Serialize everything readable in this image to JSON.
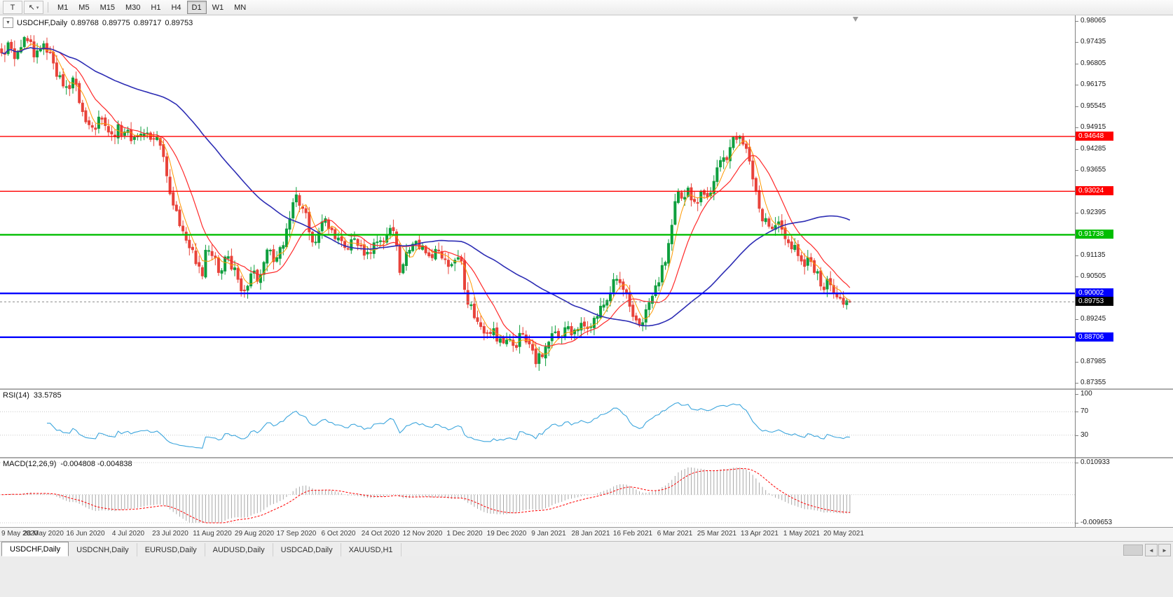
{
  "toolbar": {
    "tool_buttons": [
      {
        "id": "text-tool",
        "label": "T"
      },
      {
        "id": "cursor-tool",
        "label": "↖",
        "caret": "▾"
      }
    ],
    "timeframes": [
      "M1",
      "M5",
      "M15",
      "M30",
      "H1",
      "H4",
      "D1",
      "W1",
      "MN"
    ],
    "active_timeframe": "D1"
  },
  "chart": {
    "title": {
      "collapse_icon": "▼",
      "symbol": "USDCHF,Daily",
      "open": "0.89768",
      "high": "0.89775",
      "low": "0.89717",
      "close": "0.89753"
    },
    "price_axis": {
      "max": 0.98065,
      "min": 0.87355,
      "labels": [
        "0.98065",
        "0.97435",
        "0.96805",
        "0.96175",
        "0.95545",
        "0.94915",
        "0.94285",
        "0.93655",
        "0.93025",
        "0.92395",
        "0.91765",
        "0.91135",
        "0.90505",
        "0.89875",
        "0.89245",
        "0.88615",
        "0.87985",
        "0.87355"
      ]
    },
    "hlines": [
      {
        "price": 0.94648,
        "label": "0.94648",
        "color": "#FF0000",
        "width": 1.4
      },
      {
        "price": 0.93024,
        "label": "0.93024",
        "color": "#FF0000",
        "width": 1.4
      },
      {
        "price": 0.91738,
        "label": "0.91738",
        "color": "#00BE00",
        "width": 2.4
      },
      {
        "price": 0.90002,
        "label": "0.90002",
        "color": "#0000FF",
        "width": 2.4
      },
      {
        "price": 0.88706,
        "label": "0.88706",
        "color": "#0000FF",
        "width": 2.4
      }
    ],
    "current_price": {
      "value": 0.89753,
      "label": "0.89753",
      "color": "#000000"
    },
    "colors": {
      "up": "#0E9F3E",
      "down": "#E8433A",
      "ma_fast": "#FF9900",
      "ma_mid": "#FF2A2A",
      "ma_slow": "#2D2DB4",
      "rsi": "#3DA6DD",
      "macd_hist": "#A8A8A8",
      "macd_signal": "#FF0000",
      "current_line": "#888888"
    }
  },
  "chart_data": {
    "type": "candlestick",
    "symbol": "USDCHF",
    "timeframe": "Daily",
    "bar_count": 263,
    "total_slots": 332,
    "price_range": [
      0.87355,
      0.98065
    ],
    "last_ohlc": {
      "open": 0.89768,
      "high": 0.89775,
      "low": 0.89717,
      "close": 0.89753
    },
    "close_keyframes": [
      [
        0,
        0.9712
      ],
      [
        2,
        0.9742
      ],
      [
        4,
        0.9695
      ],
      [
        6,
        0.9728
      ],
      [
        8,
        0.9748
      ],
      [
        10,
        0.97
      ],
      [
        12,
        0.9722
      ],
      [
        14,
        0.9714
      ],
      [
        16,
        0.9682
      ],
      [
        18,
        0.9645
      ],
      [
        20,
        0.9612
      ],
      [
        22,
        0.9638
      ],
      [
        24,
        0.9565
      ],
      [
        26,
        0.9508
      ],
      [
        28,
        0.9492
      ],
      [
        30,
        0.9522
      ],
      [
        32,
        0.9497
      ],
      [
        34,
        0.9472
      ],
      [
        36,
        0.95
      ],
      [
        38,
        0.9478
      ],
      [
        40,
        0.9452
      ],
      [
        42,
        0.9466
      ],
      [
        44,
        0.9472
      ],
      [
        46,
        0.9456
      ],
      [
        48,
        0.9462
      ],
      [
        50,
        0.9405
      ],
      [
        52,
        0.9295
      ],
      [
        54,
        0.9245
      ],
      [
        56,
        0.9185
      ],
      [
        58,
        0.9135
      ],
      [
        60,
        0.9088
      ],
      [
        62,
        0.9052
      ],
      [
        63,
        0.9128
      ],
      [
        65,
        0.9112
      ],
      [
        67,
        0.9062
      ],
      [
        69,
        0.9108
      ],
      [
        71,
        0.9072
      ],
      [
        73,
        0.9042
      ],
      [
        75,
        0.9008
      ],
      [
        77,
        0.9058
      ],
      [
        79,
        0.9036
      ],
      [
        81,
        0.9092
      ],
      [
        83,
        0.9128
      ],
      [
        85,
        0.9106
      ],
      [
        87,
        0.9142
      ],
      [
        89,
        0.9222
      ],
      [
        91,
        0.9292
      ],
      [
        93,
        0.9252
      ],
      [
        95,
        0.9182
      ],
      [
        97,
        0.9152
      ],
      [
        99,
        0.9212
      ],
      [
        101,
        0.9192
      ],
      [
        103,
        0.9162
      ],
      [
        105,
        0.9156
      ],
      [
        107,
        0.9132
      ],
      [
        109,
        0.9162
      ],
      [
        111,
        0.9142
      ],
      [
        113,
        0.9122
      ],
      [
        115,
        0.915
      ],
      [
        117,
        0.9156
      ],
      [
        119,
        0.9172
      ],
      [
        121,
        0.9186
      ],
      [
        123,
        0.9062
      ],
      [
        125,
        0.9122
      ],
      [
        127,
        0.9146
      ],
      [
        129,
        0.9132
      ],
      [
        131,
        0.912
      ],
      [
        133,
        0.9106
      ],
      [
        135,
        0.9126
      ],
      [
        137,
        0.9102
      ],
      [
        139,
        0.9086
      ],
      [
        141,
        0.9106
      ],
      [
        142,
        0.9096
      ],
      [
        143,
        0.9012
      ],
      [
        144,
        0.8968
      ],
      [
        146,
        0.8928
      ],
      [
        148,
        0.8902
      ],
      [
        150,
        0.8882
      ],
      [
        152,
        0.8896
      ],
      [
        154,
        0.8866
      ],
      [
        156,
        0.8862
      ],
      [
        158,
        0.8846
      ],
      [
        160,
        0.8882
      ],
      [
        162,
        0.8856
      ],
      [
        164,
        0.8832
      ],
      [
        165,
        0.8792
      ],
      [
        166,
        0.8822
      ],
      [
        168,
        0.8842
      ],
      [
        169,
        0.8856
      ],
      [
        171,
        0.8886
      ],
      [
        173,
        0.8872
      ],
      [
        175,
        0.8902
      ],
      [
        177,
        0.8892
      ],
      [
        179,
        0.8912
      ],
      [
        181,
        0.8896
      ],
      [
        182,
        0.8902
      ],
      [
        184,
        0.8932
      ],
      [
        186,
        0.8966
      ],
      [
        188,
        0.9002
      ],
      [
        190,
        0.9042
      ],
      [
        192,
        0.9012
      ],
      [
        194,
        0.8962
      ],
      [
        195,
        0.8932
      ],
      [
        197,
        0.8906
      ],
      [
        199,
        0.8952
      ],
      [
        201,
        0.8992
      ],
      [
        203,
        0.9032
      ],
      [
        205,
        0.9092
      ],
      [
        207,
        0.9202
      ],
      [
        208,
        0.9272
      ],
      [
        209,
        0.9302
      ],
      [
        210,
        0.9282
      ],
      [
        212,
        0.9312
      ],
      [
        214,
        0.9272
      ],
      [
        216,
        0.9302
      ],
      [
        218,
        0.9286
      ],
      [
        220,
        0.9332
      ],
      [
        221,
        0.9372
      ],
      [
        223,
        0.9402
      ],
      [
        225,
        0.9432
      ],
      [
        227,
        0.9456
      ],
      [
        228,
        0.9465
      ],
      [
        229,
        0.9442
      ],
      [
        231,
        0.9392
      ],
      [
        233,
        0.9302
      ],
      [
        234,
        0.9252
      ],
      [
        236,
        0.9222
      ],
      [
        238,
        0.9192
      ],
      [
        240,
        0.9212
      ],
      [
        242,
        0.9162
      ],
      [
        244,
        0.9132
      ],
      [
        246,
        0.9112
      ],
      [
        247,
        0.9096
      ],
      [
        249,
        0.9106
      ],
      [
        251,
        0.9062
      ],
      [
        253,
        0.9022
      ],
      [
        255,
        0.9042
      ],
      [
        257,
        0.9002
      ],
      [
        259,
        0.8986
      ],
      [
        261,
        0.8978
      ],
      [
        262,
        0.89753
      ]
    ],
    "x_labels": [
      {
        "i": 0,
        "t": "9 May 2020"
      },
      {
        "i": 13,
        "t": "28 May 2020"
      },
      {
        "i": 26,
        "t": "16 Jun 2020"
      },
      {
        "i": 39,
        "t": "4 Jul 2020"
      },
      {
        "i": 52,
        "t": "23 Jul 2020"
      },
      {
        "i": 65,
        "t": "11 Aug 2020"
      },
      {
        "i": 78,
        "t": "29 Aug 2020"
      },
      {
        "i": 91,
        "t": "17 Sep 2020"
      },
      {
        "i": 104,
        "t": "6 Oct 2020"
      },
      {
        "i": 117,
        "t": "24 Oct 2020"
      },
      {
        "i": 130,
        "t": "12 Nov 2020"
      },
      {
        "i": 143,
        "t": "1 Dec 2020"
      },
      {
        "i": 156,
        "t": "19 Dec 2020"
      },
      {
        "i": 169,
        "t": "9 Jan 2021"
      },
      {
        "i": 182,
        "t": "28 Jan 2021"
      },
      {
        "i": 195,
        "t": "16 Feb 2021"
      },
      {
        "i": 208,
        "t": "6 Mar 2021"
      },
      {
        "i": 221,
        "t": "25 Mar 2021"
      },
      {
        "i": 234,
        "t": "13 Apr 2021"
      },
      {
        "i": 247,
        "t": "1 May 2021"
      },
      {
        "i": 260,
        "t": "20 May 2021"
      }
    ],
    "moving_averages": [
      {
        "period": 5,
        "color": "ma_fast",
        "width": 1
      },
      {
        "period": 13,
        "color": "ma_mid",
        "width": 1.2
      },
      {
        "period": 55,
        "color": "ma_slow",
        "width": 1.6
      }
    ],
    "indicators": {
      "rsi": {
        "label": "RSI(14)",
        "value": "33.5785",
        "period": 14,
        "levels": [
          30,
          70
        ],
        "range": [
          0,
          100
        ],
        "axis_labels": [
          {
            "v": 100,
            "t": "100"
          },
          {
            "v": 70,
            "t": "70"
          },
          {
            "v": 30,
            "t": "30"
          }
        ]
      },
      "macd": {
        "label": "MACD(12,26,9)",
        "value": "-0.004808 -0.004838",
        "fast": 12,
        "slow": 26,
        "signal": 9,
        "range": [
          -0.009653,
          0.010933
        ],
        "axis_labels": [
          {
            "v": 0.010933,
            "t": "0.010933"
          },
          {
            "v": -0.009653,
            "t": "-0.009653"
          }
        ]
      }
    }
  },
  "tabs": {
    "items": [
      {
        "label": "USDCHF,Daily",
        "active": true
      },
      {
        "label": "USDCNH,Daily",
        "active": false
      },
      {
        "label": "EURUSD,Daily",
        "active": false
      },
      {
        "label": "AUDUSD,Daily",
        "active": false
      },
      {
        "label": "USDCAD,Daily",
        "active": false
      },
      {
        "label": "XAUUSD,H1",
        "active": false
      }
    ]
  },
  "scrollbar": {
    "left": "◄",
    "right": "►"
  }
}
